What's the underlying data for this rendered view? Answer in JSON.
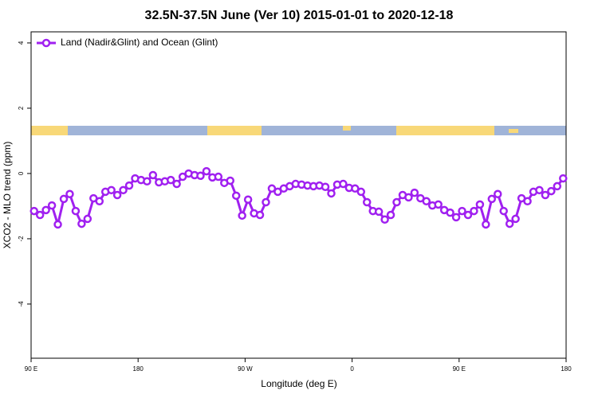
{
  "chart_data": {
    "type": "line",
    "title": "32.5N-37.5N June (Ver 10)   2015-01-01 to 2020-12-18",
    "x_label": "Longitude (deg E)",
    "y_label": "XCO2 - MLO trend (ppm)",
    "x": [
      92.5,
      97.5,
      102.5,
      107.5,
      112.5,
      117.5,
      122.5,
      127.5,
      132.5,
      137.5,
      142.5,
      147.5,
      152.5,
      157.5,
      162.5,
      167.5,
      172.5,
      177.5,
      182.5,
      187.5,
      192.5,
      197.5,
      202.5,
      207.5,
      212.5,
      217.5,
      222.5,
      227.5,
      232.5,
      237.5,
      242.5,
      247.5,
      252.5,
      257.5,
      262.5,
      267.5,
      272.5,
      277.5,
      282.5,
      287.5,
      292.5,
      297.5,
      302.5,
      307.5,
      312.5,
      317.5,
      322.5,
      327.5,
      332.5,
      337.5,
      342.5,
      347.5,
      352.5,
      357.5,
      362.5,
      367.5,
      372.5,
      377.5,
      382.5,
      387.5,
      392.5,
      397.5,
      402.5,
      407.5,
      412.5,
      417.5,
      422.5,
      427.5,
      432.5,
      437.5,
      442.5,
      447.5,
      452.5,
      457.5,
      462.5,
      467.5,
      472.5,
      477.5,
      482.5,
      487.5,
      492.5,
      497.5,
      502.5,
      507.5,
      512.5,
      517.5,
      522.5,
      527.5,
      532.5,
      537.5
    ],
    "series": [
      {
        "name": "Land (Nadir&Glint) and Ocean (Glint)",
        "color": "#a020f0",
        "values": [
          -1.15,
          -1.27,
          -1.12,
          -0.98,
          -1.56,
          -0.78,
          -0.63,
          -1.15,
          -1.54,
          -1.39,
          -0.76,
          -0.85,
          -0.56,
          -0.51,
          -0.66,
          -0.51,
          -0.37,
          -0.15,
          -0.2,
          -0.24,
          -0.05,
          -0.27,
          -0.24,
          -0.2,
          -0.32,
          -0.1,
          0,
          -0.05,
          -0.07,
          0.07,
          -0.12,
          -0.1,
          -0.29,
          -0.22,
          -0.68,
          -1.29,
          -0.8,
          -1.22,
          -1.27,
          -0.88,
          -0.46,
          -0.56,
          -0.46,
          -0.39,
          -0.32,
          -0.34,
          -0.37,
          -0.39,
          -0.37,
          -0.41,
          -0.61,
          -0.34,
          -0.32,
          -0.44,
          -0.46,
          -0.56,
          -0.88,
          -1.15,
          -1.17,
          -1.41,
          -1.27,
          -0.88,
          -0.66,
          -0.73,
          -0.59,
          -0.76,
          -0.85,
          -0.98,
          -0.95,
          -1.12,
          -1.2,
          -1.34,
          -1.15,
          -1.27,
          -1.15,
          -0.95,
          -1.56,
          -0.78,
          -0.63,
          -1.15,
          -1.54,
          -1.39,
          -0.76,
          -0.85,
          -0.56,
          -0.51,
          -0.66,
          -0.54,
          -0.39,
          -0.15
        ]
      }
    ],
    "xlim": [
      90,
      540
    ],
    "xticks": [
      {
        "value": 90,
        "label": "90 E"
      },
      180,
      {
        "value": 270,
        "label": "90 W"
      },
      {
        "value": 360,
        "label": "0"
      },
      {
        "value": 450,
        "label": "90 E"
      },
      {
        "value": 540,
        "label": "180"
      }
    ],
    "ylim": [
      -5.66,
      4.34
    ],
    "yticks": [
      4,
      2,
      0,
      -2,
      -4
    ],
    "legend": "top-left"
  }
}
